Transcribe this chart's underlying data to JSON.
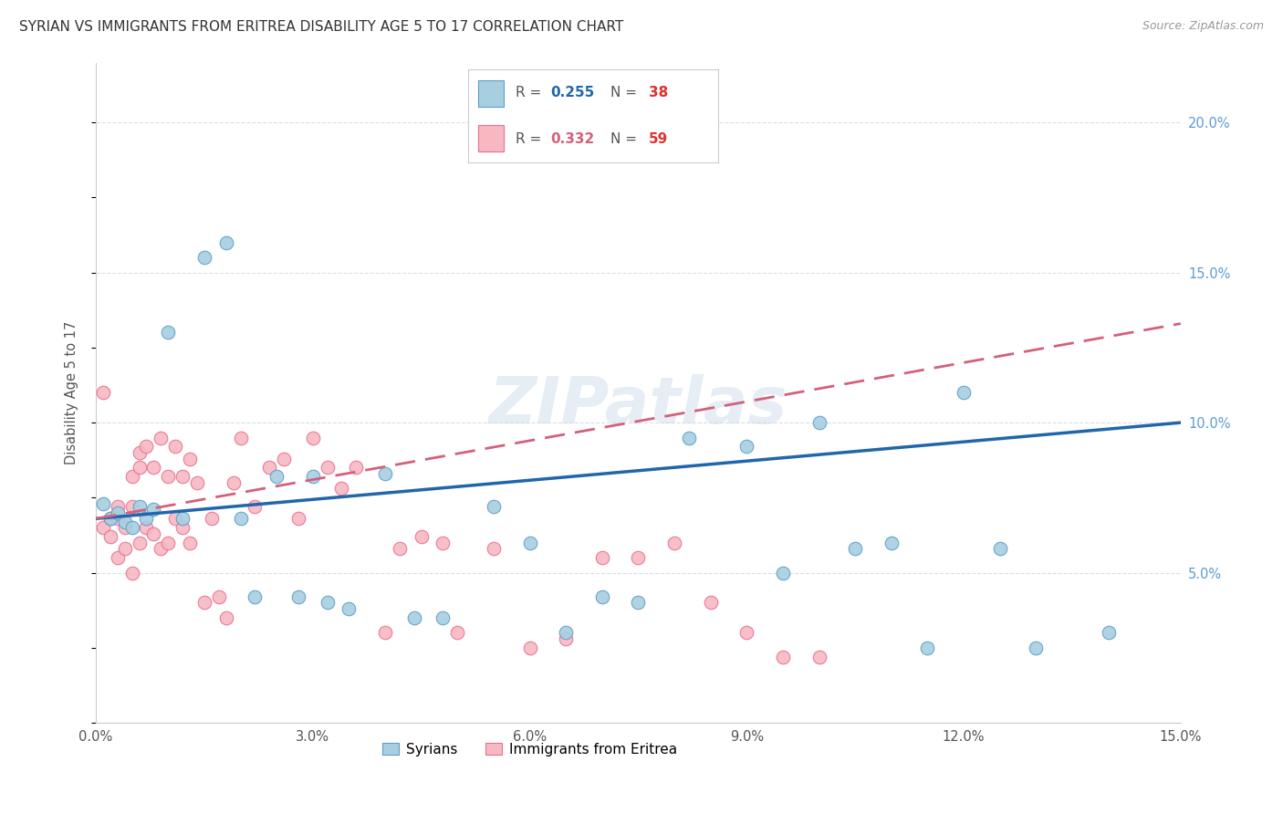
{
  "title": "SYRIAN VS IMMIGRANTS FROM ERITREA DISABILITY AGE 5 TO 17 CORRELATION CHART",
  "source": "Source: ZipAtlas.com",
  "ylabel": "Disability Age 5 to 17",
  "xlim": [
    0.0,
    0.15
  ],
  "ylim": [
    0.0,
    0.22
  ],
  "xticks": [
    0.0,
    0.03,
    0.06,
    0.09,
    0.12,
    0.15
  ],
  "yticks_right": [
    0.05,
    0.1,
    0.15,
    0.2
  ],
  "syrians_color": "#a8cfe0",
  "eritrea_color": "#f7b8c2",
  "syrians_edge_color": "#5a9ec9",
  "eritrea_edge_color": "#e87090",
  "syrians_line_color": "#2166ac",
  "eritrea_line_color": "#d4607a",
  "background_color": "#ffffff",
  "grid_color": "#d8dfe8",
  "syrians_x": [
    0.001,
    0.002,
    0.003,
    0.004,
    0.005,
    0.006,
    0.007,
    0.008,
    0.01,
    0.012,
    0.015,
    0.018,
    0.02,
    0.022,
    0.025,
    0.028,
    0.03,
    0.032,
    0.035,
    0.04,
    0.044,
    0.048,
    0.055,
    0.06,
    0.065,
    0.07,
    0.075,
    0.082,
    0.09,
    0.095,
    0.1,
    0.105,
    0.11,
    0.115,
    0.12,
    0.125,
    0.13,
    0.14
  ],
  "syrians_y": [
    0.073,
    0.068,
    0.07,
    0.067,
    0.065,
    0.072,
    0.068,
    0.071,
    0.13,
    0.068,
    0.155,
    0.16,
    0.068,
    0.042,
    0.082,
    0.042,
    0.082,
    0.04,
    0.038,
    0.083,
    0.035,
    0.035,
    0.072,
    0.06,
    0.03,
    0.042,
    0.04,
    0.095,
    0.092,
    0.05,
    0.1,
    0.058,
    0.06,
    0.025,
    0.11,
    0.058,
    0.025,
    0.03
  ],
  "eritrea_x": [
    0.001,
    0.001,
    0.002,
    0.002,
    0.003,
    0.003,
    0.003,
    0.004,
    0.004,
    0.005,
    0.005,
    0.005,
    0.006,
    0.006,
    0.006,
    0.007,
    0.007,
    0.008,
    0.008,
    0.009,
    0.009,
    0.01,
    0.01,
    0.011,
    0.011,
    0.012,
    0.012,
    0.013,
    0.013,
    0.014,
    0.015,
    0.016,
    0.017,
    0.018,
    0.019,
    0.02,
    0.022,
    0.024,
    0.026,
    0.028,
    0.03,
    0.032,
    0.034,
    0.036,
    0.04,
    0.042,
    0.045,
    0.048,
    0.05,
    0.055,
    0.06,
    0.065,
    0.07,
    0.075,
    0.08,
    0.085,
    0.09,
    0.095,
    0.1
  ],
  "eritrea_y": [
    0.11,
    0.065,
    0.068,
    0.062,
    0.072,
    0.055,
    0.068,
    0.065,
    0.058,
    0.072,
    0.082,
    0.05,
    0.085,
    0.09,
    0.06,
    0.092,
    0.065,
    0.085,
    0.063,
    0.095,
    0.058,
    0.06,
    0.082,
    0.068,
    0.092,
    0.082,
    0.065,
    0.088,
    0.06,
    0.08,
    0.04,
    0.068,
    0.042,
    0.035,
    0.08,
    0.095,
    0.072,
    0.085,
    0.088,
    0.068,
    0.095,
    0.085,
    0.078,
    0.085,
    0.03,
    0.058,
    0.062,
    0.06,
    0.03,
    0.058,
    0.025,
    0.028,
    0.055,
    0.055,
    0.06,
    0.04,
    0.03,
    0.022,
    0.022
  ],
  "syrians_line_x0": 0.0,
  "syrians_line_y0": 0.068,
  "syrians_line_x1": 0.15,
  "syrians_line_y1": 0.1,
  "eritrea_line_x0": 0.0,
  "eritrea_line_y0": 0.068,
  "eritrea_line_x1": 0.15,
  "eritrea_line_y1": 0.133
}
